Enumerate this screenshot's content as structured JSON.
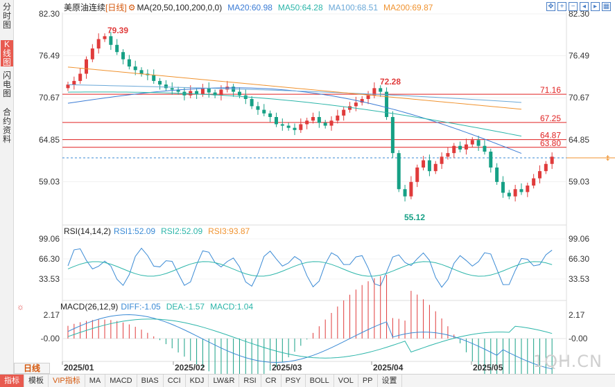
{
  "sidebar": {
    "tabs": [
      {
        "label": "分时图",
        "active": false
      },
      {
        "label": "K线图",
        "active": true
      },
      {
        "label": "闪电图",
        "active": false
      },
      {
        "label": "合约资料",
        "active": false
      }
    ]
  },
  "header": {
    "title": "美原油连续",
    "period_tag": "[日线]",
    "ma_label": "MA(20,50,100,200,0,0)",
    "ma20": "MA20:60.98",
    "ma50": "MA50:64.28",
    "ma100": "MA100:68.51",
    "ma200": "MA200:69.87"
  },
  "price_axis": [
    "82.30",
    "76.49",
    "70.67",
    "64.85",
    "59.03"
  ],
  "annotations": {
    "high": "79.39",
    "mid_high": "72.28",
    "low": "55.12",
    "level1": "71.16",
    "level2": "67.25",
    "level3": "64.87",
    "level4": "63.80"
  },
  "rsi": {
    "label": "RSI(14,14,2)",
    "rsi1": "RSI1:52.09",
    "rsi2": "RSI2:52.09",
    "rsi3": "RSI3:93.87",
    "axis": [
      "99.06",
      "66.30",
      "33.53"
    ]
  },
  "macd": {
    "label": "MACD(26,12,9)",
    "diff": "DIFF:-1.05",
    "dea": "DEA:-1.57",
    "macd": "MACD:1.04",
    "axis": [
      "2.17",
      "-0.00"
    ]
  },
  "date_axis": [
    "2025/01",
    "2025/02",
    "2025/03",
    "2025/04",
    "2025/05"
  ],
  "period_label": "日线",
  "bottom_tabs": [
    {
      "label": "指标",
      "active": true,
      "vip": false
    },
    {
      "label": "模板",
      "active": false,
      "vip": false
    },
    {
      "label": "VIP指标",
      "active": false,
      "vip": true
    },
    {
      "label": "MA",
      "active": false,
      "vip": false
    },
    {
      "label": "MACD",
      "active": false,
      "vip": false
    },
    {
      "label": "BIAS",
      "active": false,
      "vip": false
    },
    {
      "label": "CCI",
      "active": false,
      "vip": false
    },
    {
      "label": "KDJ",
      "active": false,
      "vip": false
    },
    {
      "label": "LW&R",
      "active": false,
      "vip": false
    },
    {
      "label": "RSI",
      "active": false,
      "vip": false
    },
    {
      "label": "CR",
      "active": false,
      "vip": false
    },
    {
      "label": "PSY",
      "active": false,
      "vip": false
    },
    {
      "label": "BOLL",
      "active": false,
      "vip": false
    },
    {
      "label": "VOL",
      "active": false,
      "vip": false
    },
    {
      "label": "PP",
      "active": false,
      "vip": false
    },
    {
      "label": "设置",
      "active": false,
      "vip": false
    }
  ],
  "watermark": "1QH.CN",
  "tool_icons": [
    "expand-icon",
    "zoom-in-icon",
    "zoom-out-icon",
    "move-left-icon",
    "move-right-icon",
    "fit-icon"
  ],
  "colors": {
    "up": "#e03b3b",
    "down": "#16a085",
    "ma20": "#3a7bd5",
    "ma50": "#2bb5a9",
    "ma100": "#6aa8d8",
    "ma200": "#f0922e",
    "level_line": "#e02020",
    "current_line": "#3a8ad5"
  }
}
